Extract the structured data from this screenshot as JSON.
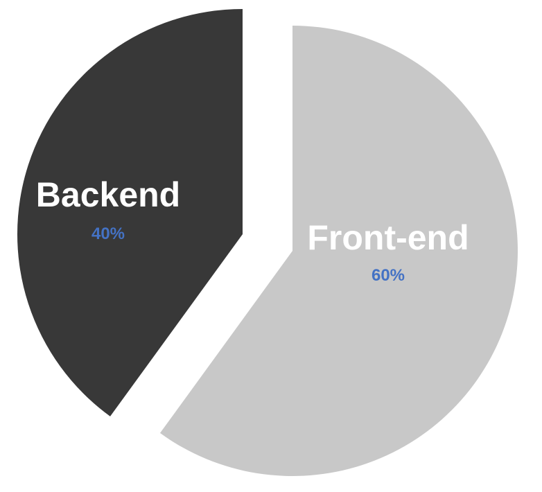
{
  "chart_data": {
    "type": "pie",
    "title": "",
    "start_angle_deg": 0,
    "exploded": true,
    "label_color": "#ffffff",
    "value_color": "#4472C4",
    "slices": [
      {
        "label": "Front-end",
        "value": 60,
        "value_label": "60%",
        "color": "#C8C8C8"
      },
      {
        "label": "Backend",
        "value": 40,
        "value_label": "40%",
        "color": "#383838"
      }
    ]
  }
}
